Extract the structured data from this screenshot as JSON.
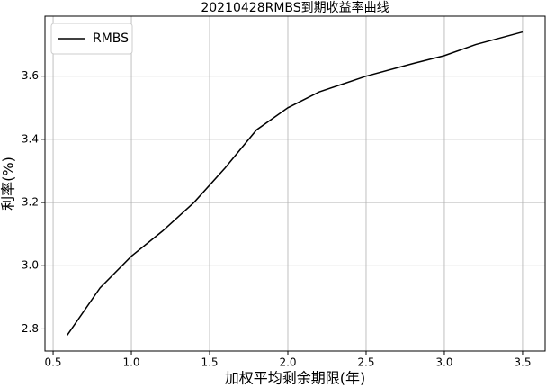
{
  "chart_data": {
    "type": "line",
    "title": "20210428RMBS到期收益率曲线",
    "xlabel": "加权平均剩余期限(年)",
    "ylabel": "利率(%)",
    "x": [
      0.59,
      0.8,
      1.0,
      1.2,
      1.4,
      1.6,
      1.8,
      2.0,
      2.2,
      2.5,
      2.8,
      3.0,
      3.2,
      3.5
    ],
    "series": [
      {
        "name": "RMBS",
        "color": "#000000",
        "values": [
          2.78,
          2.93,
          3.03,
          3.11,
          3.2,
          3.31,
          3.43,
          3.5,
          3.55,
          3.6,
          3.64,
          3.665,
          3.7,
          3.74
        ]
      }
    ],
    "xlim": [
      0.448,
      3.644
    ],
    "ylim": [
      2.73,
      3.79
    ],
    "xticks": [
      0.5,
      {
        "value": 1,
        "label": "1.0"
      },
      1.5,
      {
        "value": 2,
        "label": "2.0"
      },
      2.5,
      {
        "value": 3,
        "label": "3.0"
      },
      3.5
    ],
    "yticks": [
      2.8,
      {
        "value": 3,
        "label": "3.0"
      },
      3.2,
      3.4,
      3.6
    ],
    "grid": true,
    "legend": "upper left"
  }
}
